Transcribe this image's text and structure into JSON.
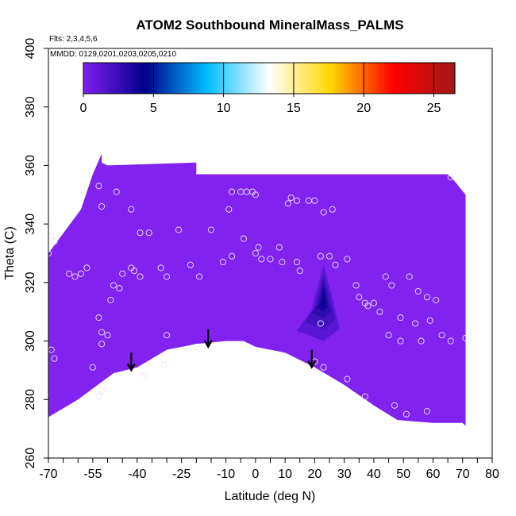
{
  "chart_data": {
    "type": "heatmap",
    "title": "ATOM2 Southbound MineralMass_PALMS",
    "flights_note": "Flts: 2,3,4,5,6",
    "dates_note": "MMDD: 0129,0201,0203,0205,0210",
    "xlabel": "Latitude (deg N)",
    "ylabel": "Theta (C)",
    "xlim": [
      -70,
      80
    ],
    "ylim": [
      260,
      400
    ],
    "x_ticks": [
      -70,
      -55,
      -40,
      -25,
      -10,
      0,
      10,
      20,
      30,
      40,
      50,
      60,
      70,
      80
    ],
    "x_tick_labels": [
      "-70",
      "-55",
      "-40",
      "-25",
      "-10",
      "0",
      "10",
      "20",
      "30",
      "40",
      "50",
      "60",
      "70",
      "80"
    ],
    "y_ticks": [
      260,
      280,
      300,
      320,
      340,
      360,
      380,
      400
    ],
    "y_tick_labels": [
      "260",
      "280",
      "300",
      "320",
      "340",
      "360",
      "380",
      "400"
    ],
    "colorbar": {
      "min": 0,
      "max": 26.5,
      "ticks": [
        0,
        5,
        10,
        15,
        20,
        25
      ],
      "tick_labels": [
        "0",
        "5",
        "10",
        "15",
        "20",
        "25"
      ],
      "colors": [
        "#7f1fef",
        "#00008b",
        "#00bfff",
        "#ffffff",
        "#ffd700",
        "#ff0000",
        "#a01818"
      ]
    },
    "field": {
      "background_value": 0.5,
      "background_color": "#8122ee",
      "outline_upper": [
        [
          -70,
          330
        ],
        [
          -59,
          345
        ],
        [
          -55,
          357
        ],
        [
          -52,
          364
        ],
        [
          -52,
          361
        ],
        [
          -50,
          360
        ],
        [
          -20,
          361
        ],
        [
          -20,
          357
        ],
        [
          65,
          357
        ],
        [
          67,
          355
        ],
        [
          71,
          350
        ],
        [
          71,
          320
        ]
      ],
      "outline_lower": [
        [
          -70,
          274
        ],
        [
          -60,
          280
        ],
        [
          -48,
          289
        ],
        [
          -40,
          291
        ],
        [
          -30,
          297
        ],
        [
          -20,
          299
        ],
        [
          -10,
          300
        ],
        [
          -4,
          300
        ],
        [
          0,
          298
        ],
        [
          10,
          296
        ],
        [
          20,
          291
        ],
        [
          30,
          285
        ],
        [
          40,
          278
        ],
        [
          48,
          273
        ],
        [
          60,
          272
        ],
        [
          70,
          272
        ],
        [
          71,
          271
        ]
      ],
      "enhancement_peak": {
        "lat": 23,
        "theta": 314,
        "value": 4.5
      }
    },
    "observations": [
      {
        "lat": -70,
        "theta": 330
      },
      {
        "lat": -69,
        "theta": 336
      },
      {
        "lat": -68,
        "theta": 334
      },
      {
        "lat": -69,
        "theta": 297
      },
      {
        "lat": -68,
        "theta": 294
      },
      {
        "lat": -63,
        "theta": 323
      },
      {
        "lat": -61,
        "theta": 322
      },
      {
        "lat": -59,
        "theta": 323
      },
      {
        "lat": -57,
        "theta": 325
      },
      {
        "lat": -55,
        "theta": 291
      },
      {
        "lat": -53,
        "theta": 281
      },
      {
        "lat": -52,
        "theta": 283
      },
      {
        "lat": -53,
        "theta": 308
      },
      {
        "lat": -52,
        "theta": 303
      },
      {
        "lat": -52,
        "theta": 299
      },
      {
        "lat": -50,
        "theta": 302
      },
      {
        "lat": -49,
        "theta": 314
      },
      {
        "lat": -48,
        "theta": 319
      },
      {
        "lat": -46,
        "theta": 318
      },
      {
        "lat": -45,
        "theta": 323
      },
      {
        "lat": -42,
        "theta": 325
      },
      {
        "lat": -41,
        "theta": 324
      },
      {
        "lat": -39,
        "theta": 322
      },
      {
        "lat": -53,
        "theta": 353
      },
      {
        "lat": -52,
        "theta": 346
      },
      {
        "lat": -47,
        "theta": 351
      },
      {
        "lat": -42,
        "theta": 345
      },
      {
        "lat": -39,
        "theta": 337
      },
      {
        "lat": -36,
        "theta": 337
      },
      {
        "lat": -32,
        "theta": 325
      },
      {
        "lat": -30,
        "theta": 322
      },
      {
        "lat": -26,
        "theta": 338
      },
      {
        "lat": -22,
        "theta": 326
      },
      {
        "lat": -19,
        "theta": 322
      },
      {
        "lat": -15,
        "theta": 338
      },
      {
        "lat": -11,
        "theta": 327
      },
      {
        "lat": -8,
        "theta": 329
      },
      {
        "lat": -4,
        "theta": 335
      },
      {
        "lat": -38,
        "theta": 288
      },
      {
        "lat": -31,
        "theta": 292
      },
      {
        "lat": -20,
        "theta": 298
      },
      {
        "lat": -8,
        "theta": 351
      },
      {
        "lat": -5,
        "theta": 351
      },
      {
        "lat": -3,
        "theta": 351
      },
      {
        "lat": -1,
        "theta": 351
      },
      {
        "lat": 0,
        "theta": 350
      },
      {
        "lat": -9,
        "theta": 345
      },
      {
        "lat": 0,
        "theta": 330
      },
      {
        "lat": 1,
        "theta": 332
      },
      {
        "lat": 2,
        "theta": 328
      },
      {
        "lat": 8,
        "theta": 332
      },
      {
        "lat": 11,
        "theta": 347
      },
      {
        "lat": 12,
        "theta": 349
      },
      {
        "lat": 14,
        "theta": 348
      },
      {
        "lat": 18,
        "theta": 348
      },
      {
        "lat": 20,
        "theta": 348
      },
      {
        "lat": 23,
        "theta": 344
      },
      {
        "lat": 26,
        "theta": 345
      },
      {
        "lat": 5,
        "theta": 328
      },
      {
        "lat": 9,
        "theta": 327
      },
      {
        "lat": 14,
        "theta": 327
      },
      {
        "lat": 15,
        "theta": 324
      },
      {
        "lat": 22,
        "theta": 329
      },
      {
        "lat": 25,
        "theta": 329
      },
      {
        "lat": 27,
        "theta": 326
      },
      {
        "lat": 31,
        "theta": 328
      },
      {
        "lat": 34,
        "theta": 319
      },
      {
        "lat": 35,
        "theta": 315
      },
      {
        "lat": 37,
        "theta": 313
      },
      {
        "lat": 38,
        "theta": 312
      },
      {
        "lat": 40,
        "theta": 313
      },
      {
        "lat": 42,
        "theta": 310
      },
      {
        "lat": 44,
        "theta": 322
      },
      {
        "lat": 46,
        "theta": 319
      },
      {
        "lat": 52,
        "theta": 322
      },
      {
        "lat": 55,
        "theta": 317
      },
      {
        "lat": 58,
        "theta": 315
      },
      {
        "lat": 61,
        "theta": 314
      },
      {
        "lat": 49,
        "theta": 308
      },
      {
        "lat": 54,
        "theta": 306
      },
      {
        "lat": 59,
        "theta": 307
      },
      {
        "lat": 63,
        "theta": 302
      },
      {
        "lat": 66,
        "theta": 300
      },
      {
        "lat": 71,
        "theta": 301
      },
      {
        "lat": 66,
        "theta": 356
      },
      {
        "lat": 45,
        "theta": 302
      },
      {
        "lat": 49,
        "theta": 300
      },
      {
        "lat": 56,
        "theta": 300
      },
      {
        "lat": 22,
        "theta": 306
      },
      {
        "lat": 20,
        "theta": 293
      },
      {
        "lat": 23,
        "theta": 291
      },
      {
        "lat": 31,
        "theta": 287
      },
      {
        "lat": 37,
        "theta": 281
      },
      {
        "lat": 47,
        "theta": 278
      },
      {
        "lat": 58,
        "theta": 276
      },
      {
        "lat": 51,
        "theta": 275
      },
      {
        "lat": -30,
        "theta": 302
      }
    ],
    "annotations": [
      {
        "type": "arrow",
        "lat": -42,
        "theta": 296
      },
      {
        "type": "arrow",
        "lat": -16,
        "theta": 304
      },
      {
        "type": "arrow",
        "lat": 19,
        "theta": 297
      }
    ]
  }
}
